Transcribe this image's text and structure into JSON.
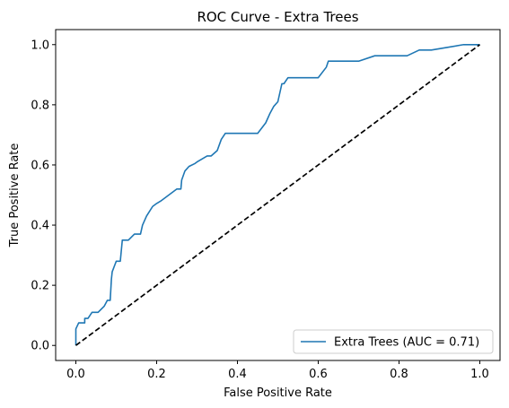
{
  "chart_data": {
    "type": "line",
    "title": "ROC Curve - Extra Trees",
    "xlabel": "False Positive Rate",
    "ylabel": "True Positive Rate",
    "xlim": [
      -0.05,
      1.05
    ],
    "ylim": [
      -0.05,
      1.05
    ],
    "xticks": [
      "0.0",
      "0.2",
      "0.4",
      "0.6",
      "0.8",
      "1.0"
    ],
    "yticks": [
      "0.0",
      "0.2",
      "0.4",
      "0.6",
      "0.8",
      "1.0"
    ],
    "grid": false,
    "legend_position": "lower right",
    "series": [
      {
        "name": "Extra Trees (AUC = 0.71)",
        "color": "#1f77b4",
        "style": "solid",
        "x": [
          0.0,
          0.0,
          0.007,
          0.022,
          0.022,
          0.03,
          0.04,
          0.055,
          0.07,
          0.078,
          0.085,
          0.088,
          0.09,
          0.1,
          0.11,
          0.115,
          0.13,
          0.145,
          0.155,
          0.16,
          0.165,
          0.175,
          0.182,
          0.19,
          0.2,
          0.21,
          0.23,
          0.25,
          0.26,
          0.262,
          0.27,
          0.28,
          0.295,
          0.3,
          0.325,
          0.335,
          0.35,
          0.36,
          0.37,
          0.45,
          0.47,
          0.48,
          0.49,
          0.5,
          0.51,
          0.515,
          0.525,
          0.55,
          0.6,
          0.62,
          0.625,
          0.7,
          0.74,
          0.82,
          0.85,
          0.88,
          0.92,
          0.96,
          1.0
        ],
        "y": [
          0.0,
          0.055,
          0.075,
          0.075,
          0.09,
          0.09,
          0.11,
          0.11,
          0.13,
          0.15,
          0.15,
          0.22,
          0.245,
          0.28,
          0.28,
          0.35,
          0.35,
          0.37,
          0.37,
          0.37,
          0.4,
          0.43,
          0.445,
          0.462,
          0.472,
          0.48,
          0.5,
          0.52,
          0.52,
          0.55,
          0.58,
          0.595,
          0.605,
          0.61,
          0.63,
          0.63,
          0.648,
          0.685,
          0.705,
          0.705,
          0.74,
          0.77,
          0.795,
          0.81,
          0.87,
          0.87,
          0.89,
          0.89,
          0.89,
          0.925,
          0.945,
          0.945,
          0.963,
          0.963,
          0.982,
          0.982,
          0.991,
          1.0,
          1.0
        ]
      },
      {
        "name": "",
        "color": "#000000",
        "style": "dashed",
        "x": [
          0.0,
          1.0
        ],
        "y": [
          0.0,
          1.0
        ]
      }
    ]
  }
}
